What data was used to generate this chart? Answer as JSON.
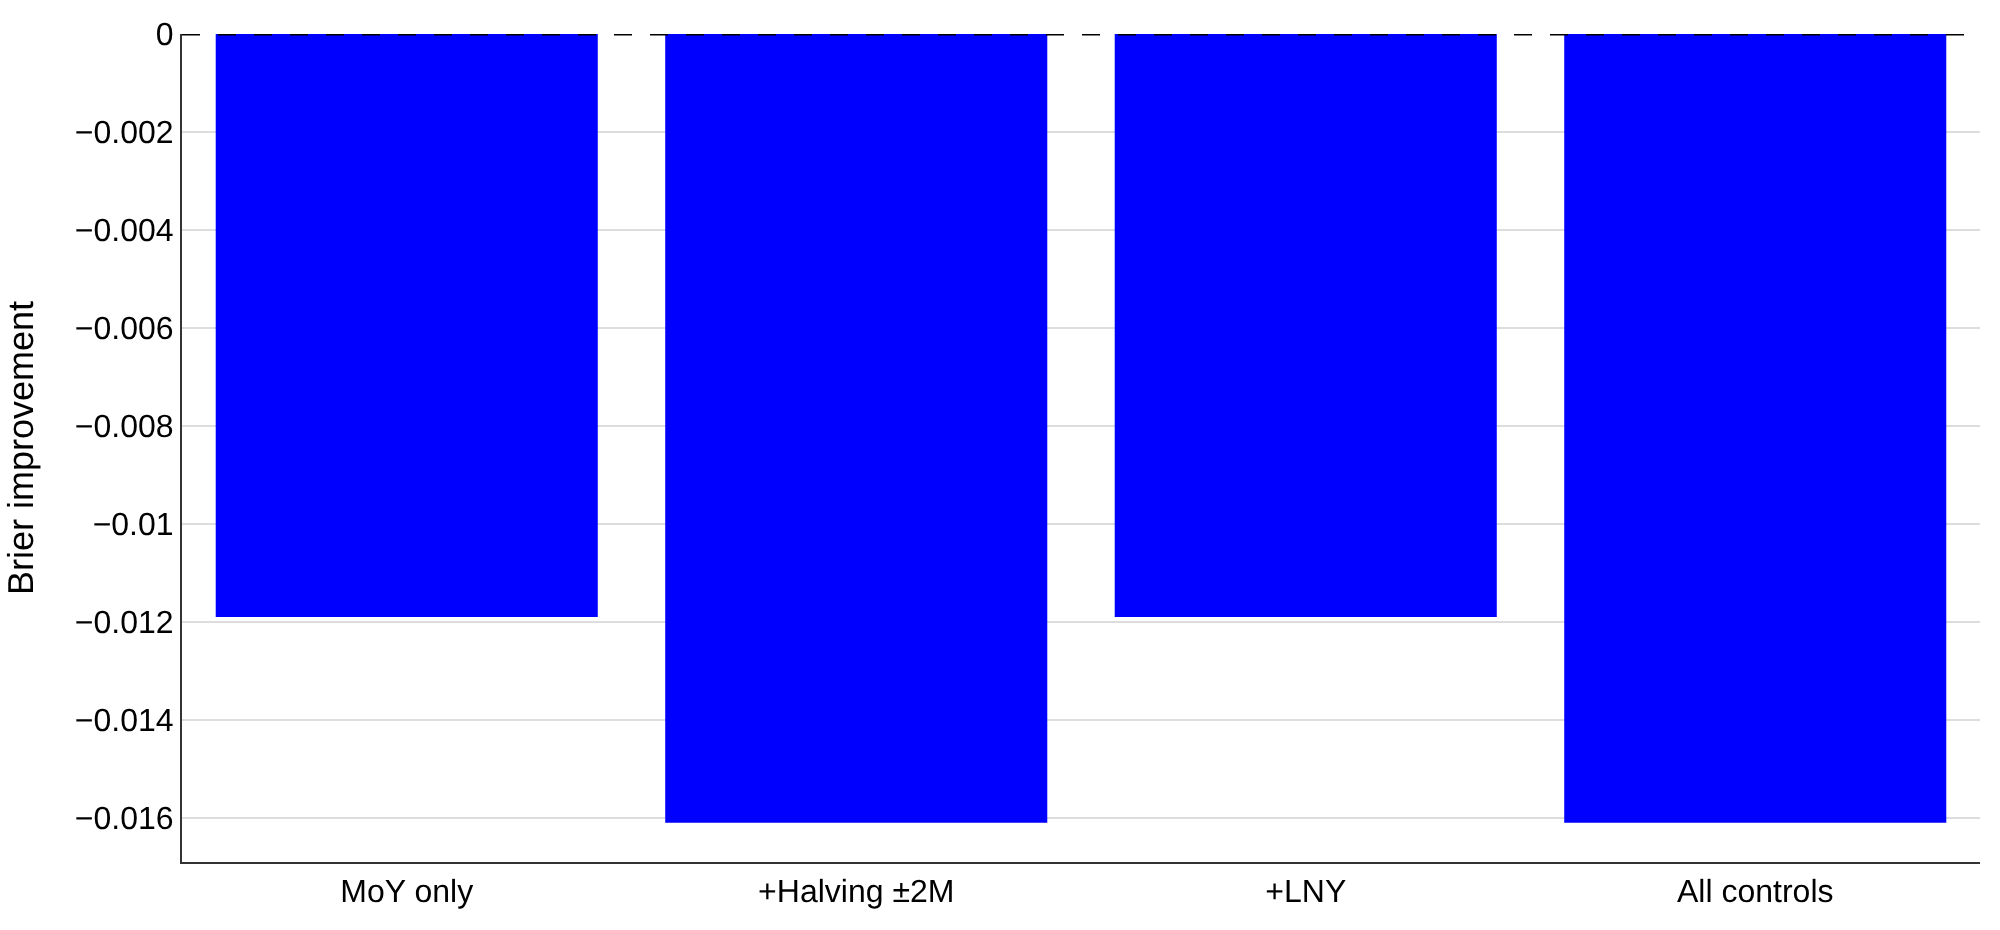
{
  "chart_data": {
    "type": "bar",
    "ylabel": "Brier improvement",
    "categories": [
      "MoY only",
      "+Halving ±2M",
      "+LNY",
      "All controls"
    ],
    "values": [
      -0.0119,
      -0.0161,
      -0.0119,
      -0.0161
    ],
    "color": "#0000ff",
    "ylim": [
      -0.0169,
      0
    ],
    "yticks": [
      0,
      {
        "value": -0.002,
        "label": "−0.002"
      },
      {
        "value": -0.004,
        "label": "−0.004"
      },
      {
        "value": -0.006,
        "label": "−0.006"
      },
      {
        "value": -0.008,
        "label": "−0.008"
      },
      {
        "value": -0.01,
        "label": "−0.01"
      },
      {
        "value": -0.012,
        "label": "−0.012"
      },
      {
        "value": -0.014,
        "label": "−0.014"
      },
      {
        "value": -0.016,
        "label": "−0.016"
      }
    ],
    "ref_lines": [
      {
        "axis": "y",
        "value": 0,
        "color": "#000000",
        "line_style": "dashed"
      }
    ],
    "grid": "y"
  }
}
